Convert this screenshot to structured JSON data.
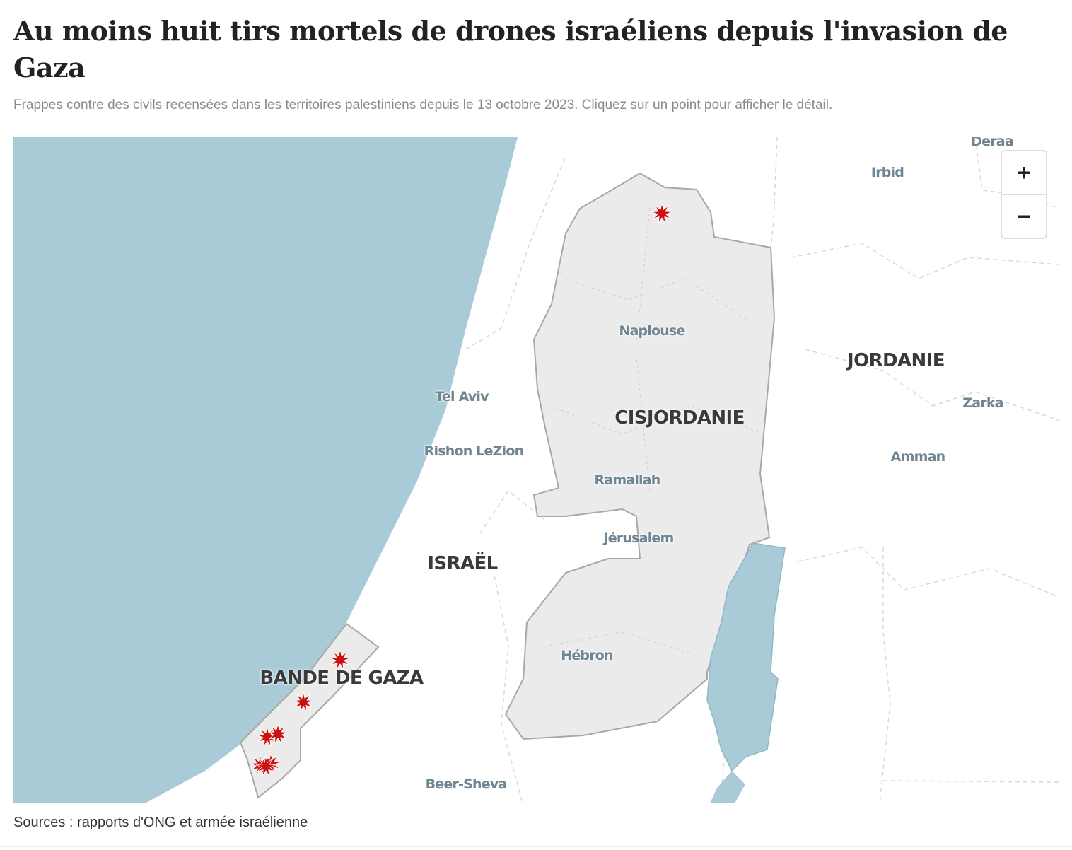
{
  "header": {
    "title": "Au moins huit tirs mortels de drones israéliens depuis l'invasion de Gaza",
    "subtitle": "Frappes contre des civils recensées dans les territoires palestiniens depuis le 13 octobre 2023. Cliquez sur un point pour afficher le détail."
  },
  "map": {
    "regions": [
      "CISJORDANIE",
      "JORDANIE",
      "ISRAËL",
      "BANDE DE GAZA"
    ],
    "cities": [
      "Deraa",
      "Irbid",
      "Naplouse",
      "Tel Aviv",
      "Zarka",
      "Rishon LeZion",
      "Amman",
      "Ramallah",
      "Jérusalem",
      "Hébron",
      "Beer-Sheva"
    ],
    "controls": [
      "+",
      "−"
    ]
  },
  "footer": {
    "source": "Sources : rapports d'ONG et armée israélienne"
  }
}
